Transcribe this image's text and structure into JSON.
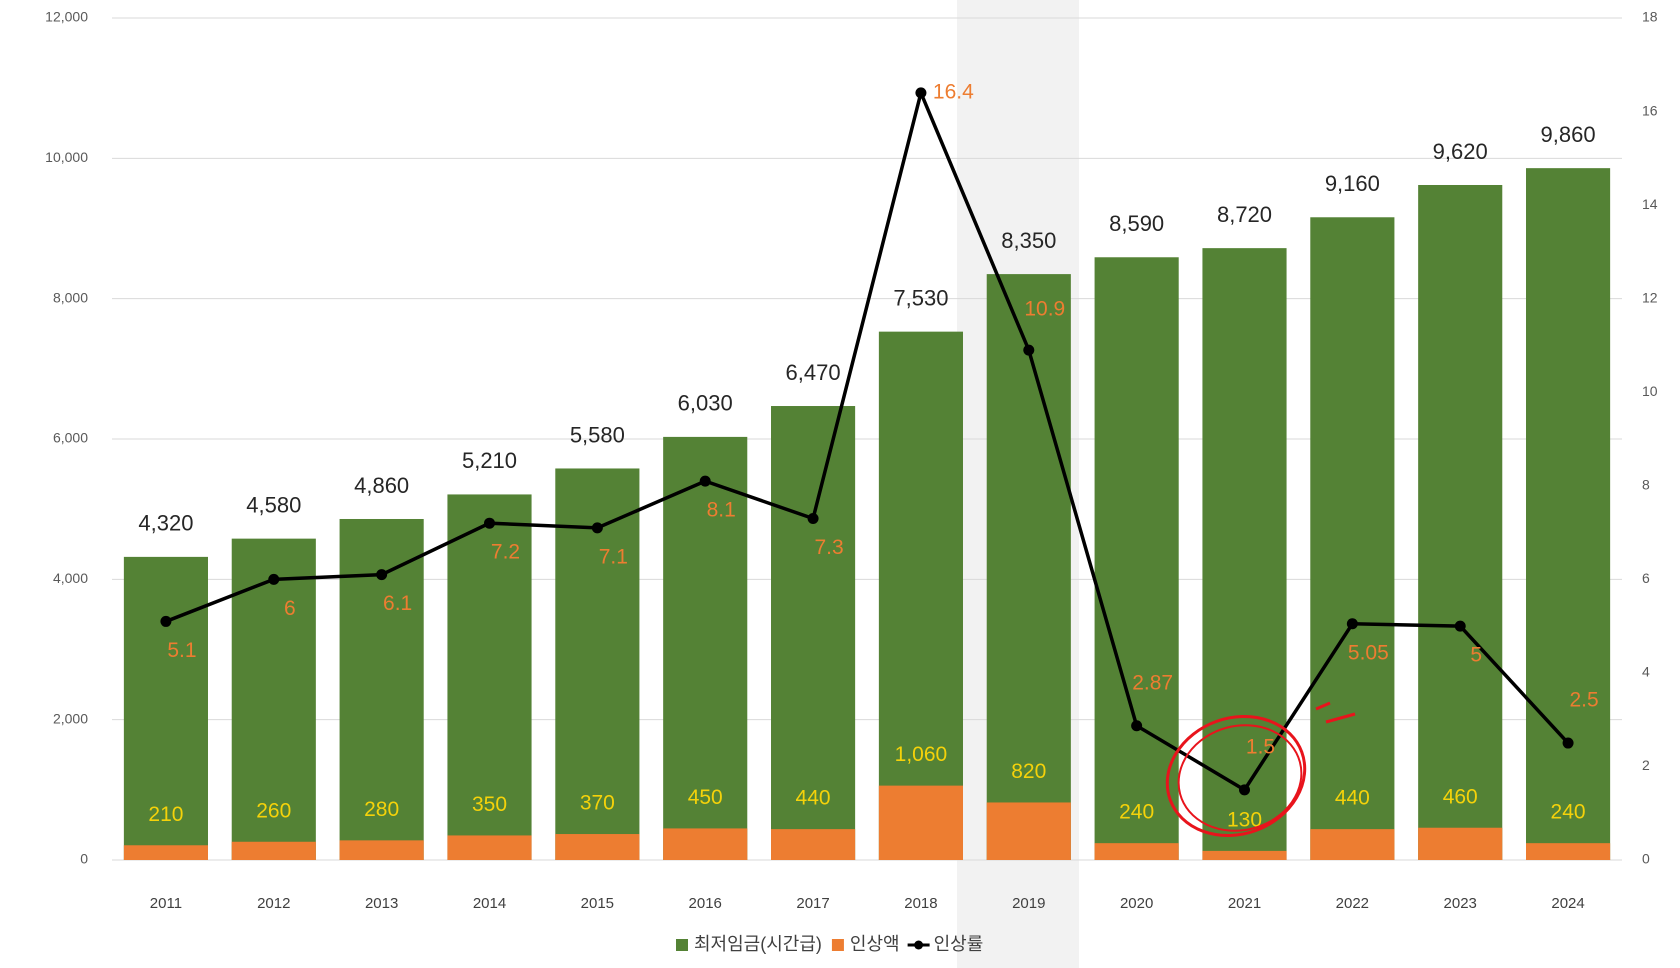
{
  "chart_data": {
    "type": "bar-line",
    "categories": [
      "2011",
      "2012",
      "2013",
      "2014",
      "2015",
      "2016",
      "2017",
      "2018",
      "2019",
      "2020",
      "2021",
      "2022",
      "2023",
      "2024"
    ],
    "series": [
      {
        "name": "최저임금(시간급)",
        "color": "#548235",
        "axis": "y",
        "values": [
          4320,
          4580,
          4860,
          5210,
          5580,
          6030,
          6470,
          7530,
          8350,
          8590,
          8720,
          9160,
          9620,
          9860
        ],
        "value_labels": [
          "4,320",
          "4,580",
          "4,860",
          "5,210",
          "5,580",
          "6,030",
          "6,470",
          "7,530",
          "8,350",
          "8,590",
          "8,720",
          "9,160",
          "9,620",
          "9,860"
        ]
      },
      {
        "name": "인상액",
        "color": "#ed7d31",
        "axis": "y",
        "values": [
          210,
          260,
          280,
          350,
          370,
          450,
          440,
          1060,
          820,
          240,
          130,
          440,
          460,
          240
        ],
        "value_labels": [
          "210",
          "260",
          "280",
          "350",
          "370",
          "450",
          "440",
          "1,060",
          "820",
          "240",
          "130",
          "440",
          "460",
          "240"
        ]
      },
      {
        "name": "인상률",
        "color": "#000000",
        "axis": "y2",
        "values": [
          5.1,
          6,
          6.1,
          7.2,
          7.1,
          8.1,
          7.3,
          16.4,
          10.9,
          2.87,
          1.5,
          5.05,
          5,
          2.5
        ]
      }
    ],
    "ylim": [
      0,
      12000
    ],
    "yticks": [
      0,
      {
        "value": 2000,
        "label": "2,000"
      },
      {
        "value": 4000,
        "label": "4,000"
      },
      {
        "value": 6000,
        "label": "6,000"
      },
      {
        "value": 8000,
        "label": "8,000"
      },
      {
        "value": 10000,
        "label": "10,000"
      },
      {
        "value": 12000,
        "label": "12,000"
      }
    ],
    "y2lim": [
      0,
      18
    ],
    "y2ticks": [
      0,
      2,
      4,
      6,
      8,
      10,
      12,
      14,
      16,
      18
    ],
    "grid": true
  }
}
